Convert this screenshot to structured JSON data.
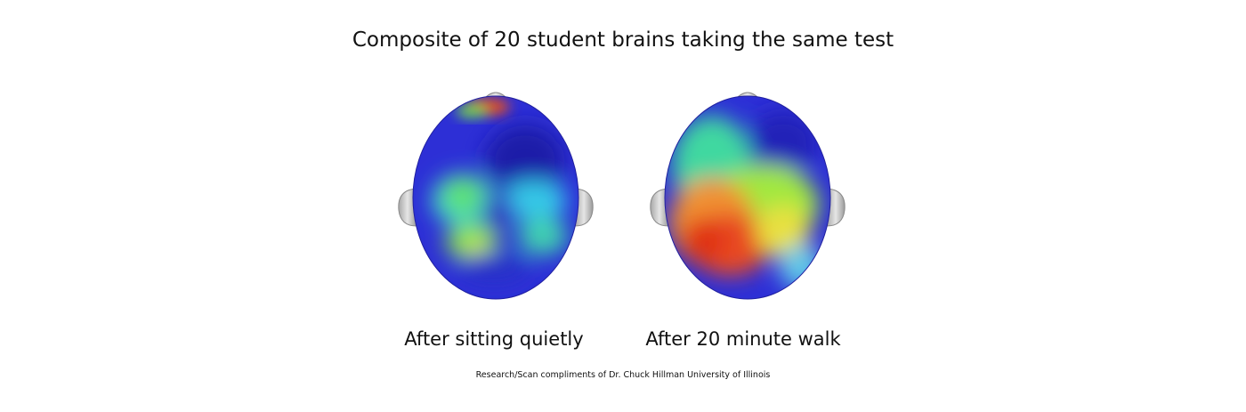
{
  "title": "Composite of 20 student brains taking the same test",
  "panels": [
    {
      "caption": "After sitting quietly"
    },
    {
      "caption": "After 20 minute walk"
    }
  ],
  "credit": "Research/Scan compliments of Dr. Chuck Hillman University of Illinois"
}
